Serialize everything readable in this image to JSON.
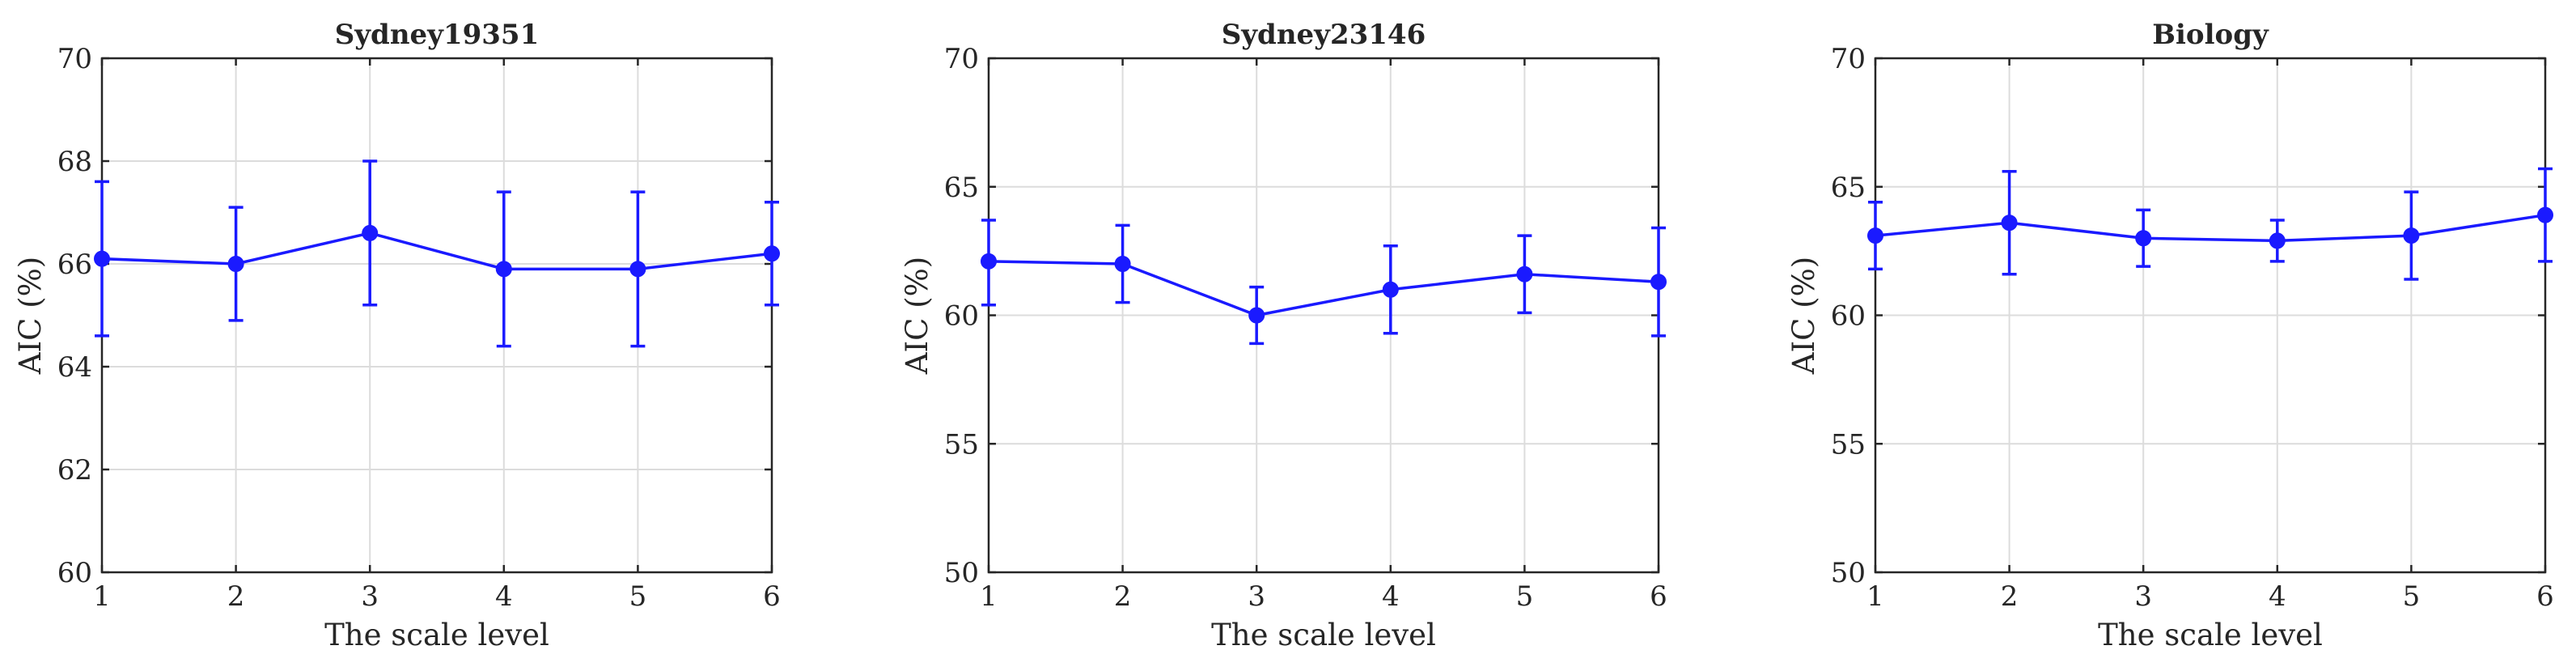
{
  "colors": {
    "series": "#1a1aff",
    "grid": "#dcdcdc",
    "axis": "#262626"
  },
  "chart_data": [
    {
      "type": "line",
      "title": "Sydney19351",
      "xlabel": "The scale level",
      "ylabel": "AIC (%)",
      "x": [
        1,
        2,
        3,
        4,
        5,
        6
      ],
      "xticks": [
        "1",
        "2",
        "3",
        "4",
        "5",
        "6"
      ],
      "ylim": [
        60,
        70
      ],
      "yticks": [
        "60",
        "62",
        "64",
        "66",
        "68",
        "70"
      ],
      "grid": true,
      "series": [
        {
          "values": [
            66.1,
            66.0,
            66.6,
            65.9,
            65.9,
            66.2
          ],
          "error_low": [
            64.6,
            64.9,
            65.2,
            64.4,
            64.4,
            65.2
          ],
          "error_high": [
            67.6,
            67.1,
            68.0,
            67.4,
            67.4,
            67.2
          ]
        }
      ]
    },
    {
      "type": "line",
      "title": "Sydney23146",
      "xlabel": "The scale level",
      "ylabel": "AIC (%)",
      "x": [
        1,
        2,
        3,
        4,
        5,
        6
      ],
      "xticks": [
        "1",
        "2",
        "3",
        "4",
        "5",
        "6"
      ],
      "ylim": [
        50,
        70
      ],
      "yticks": [
        "50",
        "55",
        "60",
        "65",
        "70"
      ],
      "grid": true,
      "series": [
        {
          "values": [
            62.1,
            62.0,
            60.0,
            61.0,
            61.6,
            61.3
          ],
          "error_low": [
            60.4,
            60.5,
            58.9,
            59.3,
            60.1,
            59.2
          ],
          "error_high": [
            63.7,
            63.5,
            61.1,
            62.7,
            63.1,
            63.4
          ]
        }
      ]
    },
    {
      "type": "line",
      "title": "Biology",
      "xlabel": "The scale level",
      "ylabel": "AIC (%)",
      "x": [
        1,
        2,
        3,
        4,
        5,
        6
      ],
      "xticks": [
        "1",
        "2",
        "3",
        "4",
        "5",
        "6"
      ],
      "ylim": [
        50,
        70
      ],
      "yticks": [
        "50",
        "55",
        "60",
        "65",
        "70"
      ],
      "grid": true,
      "series": [
        {
          "values": [
            63.1,
            63.6,
            63.0,
            62.9,
            63.1,
            63.9
          ],
          "error_low": [
            61.8,
            61.6,
            61.9,
            62.1,
            61.4,
            62.1
          ],
          "error_high": [
            64.4,
            65.6,
            64.1,
            63.7,
            64.8,
            65.7
          ]
        }
      ]
    }
  ]
}
